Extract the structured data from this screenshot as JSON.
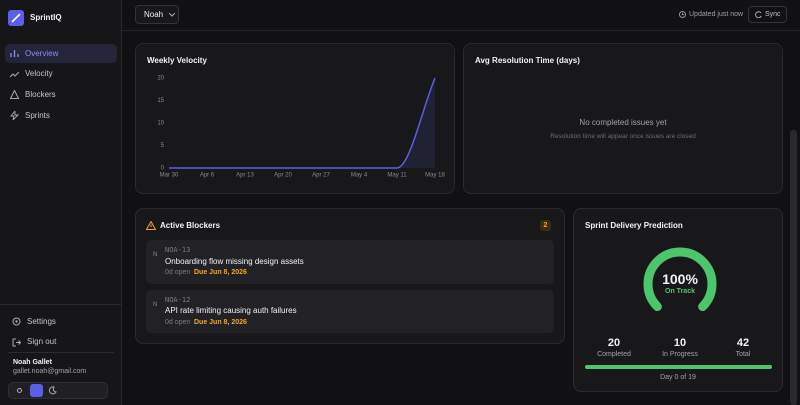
{
  "sidebar": {
    "brand": "SprintIQ",
    "nav": [
      "Overview",
      "Velocity",
      "Blockers",
      "Sprints"
    ],
    "footer_nav": [
      "Settings",
      "Sign out"
    ],
    "user": {
      "name": "Noah Gallet",
      "email": "gallet.noah@gmail.com"
    }
  },
  "topbar": {
    "selector": "Noah",
    "status": "Updated just now",
    "sync": "Sync"
  },
  "chart_data": {
    "type": "line",
    "title": "Weekly Velocity",
    "categories": [
      "Mar 30",
      "Apr 6",
      "Apr 13",
      "Apr 20",
      "Apr 27",
      "May 4",
      "May 11",
      "May 18"
    ],
    "values": [
      0,
      0,
      0,
      0,
      0,
      0,
      0,
      20
    ],
    "color": "#5b5fe6",
    "ylim": [
      0,
      20
    ],
    "yticks": [
      0,
      5,
      10,
      15,
      20
    ],
    "grid": false
  },
  "resolution": {
    "title": "Avg Resolution Time (days)",
    "empty_title": "No completed issues yet",
    "empty_text": "Resolution time will appear once issues are closed"
  },
  "blockers": {
    "title": "Active Blockers",
    "count": 2,
    "items": [
      {
        "avatar": "N",
        "key": "NOA-13",
        "title": "Onboarding flow missing design assets",
        "age": "0d open",
        "due": "Due Jun 8, 2026"
      },
      {
        "avatar": "N",
        "key": "NOA-12",
        "title": "API rate limiting causing auth failures",
        "age": "0d open",
        "due": "Due Jun 8, 2026"
      }
    ]
  },
  "prediction": {
    "title": "Sprint Delivery Prediction",
    "gauge": {
      "value": 100,
      "label": "100%"
    },
    "status": "On Track",
    "stats": [
      {
        "value": 20,
        "label": "Completed"
      },
      {
        "value": 10,
        "label": "In Progress"
      },
      {
        "value": 42,
        "label": "Total"
      }
    ],
    "day": "Day 0 of 19"
  }
}
